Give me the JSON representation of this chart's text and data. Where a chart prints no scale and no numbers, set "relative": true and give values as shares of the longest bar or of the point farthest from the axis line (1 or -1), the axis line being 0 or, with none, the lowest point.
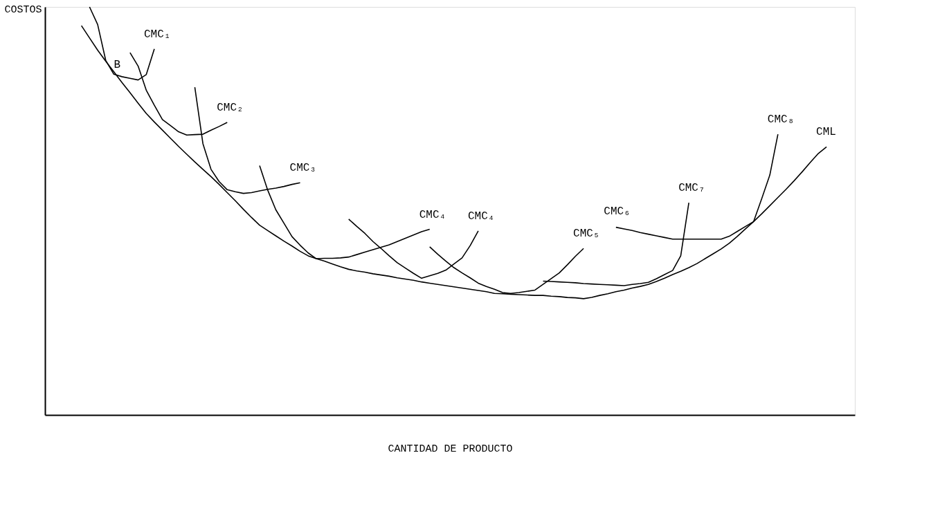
{
  "chart_data": {
    "type": "line",
    "relative": true,
    "xlabel": "CANTIDAD DE PRODUCTO",
    "ylabel": "COSTOS",
    "grid": false,
    "legend": false,
    "marker": "none",
    "line_style": "solid",
    "categories": [
      null,
      null,
      null,
      null,
      null,
      null,
      null,
      null,
      null,
      null,
      null,
      null,
      null,
      null,
      null,
      null,
      null,
      null,
      null,
      null,
      null,
      null,
      null,
      null,
      null,
      null,
      null,
      null,
      null,
      null,
      null,
      null,
      null,
      null,
      null,
      null,
      null,
      null,
      null,
      null,
      null,
      null,
      null,
      null,
      null,
      null,
      null,
      null,
      null,
      null,
      null,
      null,
      null,
      null,
      null,
      null,
      null,
      null,
      null,
      null,
      null,
      null,
      null,
      null,
      null,
      null,
      null,
      null,
      null,
      null,
      null,
      null,
      null,
      null,
      null,
      null,
      null,
      null,
      null,
      null,
      null,
      null,
      null,
      null,
      null,
      null,
      null,
      null,
      null,
      null,
      null,
      null,
      null,
      null,
      null,
      null,
      null,
      null,
      null,
      null
    ],
    "series": [
      {
        "name": "CMC₁",
        "color": "#000000",
        "values": [
          null,
          null,
          null,
          null,
          null,
          1.0,
          0.957,
          0.869,
          0.835,
          0.829,
          0.825,
          0.821,
          0.834,
          0.897,
          null,
          null,
          null,
          null,
          null,
          null,
          null,
          null,
          null,
          null,
          null,
          null,
          null,
          null,
          null,
          null,
          null,
          null,
          null,
          null,
          null,
          null,
          null,
          null,
          null,
          null,
          null,
          null,
          null,
          null,
          null,
          null,
          null,
          null,
          null,
          null,
          null,
          null,
          null,
          null,
          null,
          null,
          null,
          null,
          null,
          null,
          null,
          null,
          null,
          null,
          null,
          null,
          null,
          null,
          null,
          null,
          null,
          null,
          null,
          null,
          null,
          null,
          null,
          null,
          null,
          null,
          null,
          null,
          null,
          null,
          null,
          null,
          null,
          null,
          null,
          null,
          null,
          null,
          null,
          null,
          null,
          null,
          null,
          null,
          null,
          null
        ]
      },
      {
        "name": "CMC₂",
        "color": "#000000",
        "values": [
          null,
          null,
          null,
          null,
          null,
          null,
          null,
          null,
          null,
          null,
          0.888,
          0.855,
          0.796,
          0.759,
          0.724,
          0.709,
          0.694,
          0.686,
          0.687,
          0.688,
          0.698,
          0.707,
          0.717,
          null,
          null,
          null,
          null,
          null,
          null,
          null,
          null,
          null,
          null,
          null,
          null,
          null,
          null,
          null,
          null,
          null,
          null,
          null,
          null,
          null,
          null,
          null,
          null,
          null,
          null,
          null,
          null,
          null,
          null,
          null,
          null,
          null,
          null,
          null,
          null,
          null,
          null,
          null,
          null,
          null,
          null,
          null,
          null,
          null,
          null,
          null,
          null,
          null,
          null,
          null,
          null,
          null,
          null,
          null,
          null,
          null,
          null,
          null,
          null,
          null,
          null,
          null,
          null,
          null,
          null,
          null,
          null,
          null,
          null,
          null,
          null,
          null,
          null,
          null,
          null,
          null
        ]
      },
      {
        "name": "CMC₃",
        "color": "#000000",
        "values": [
          null,
          null,
          null,
          null,
          null,
          null,
          null,
          null,
          null,
          null,
          null,
          null,
          null,
          null,
          null,
          null,
          null,
          null,
          0.803,
          0.665,
          0.602,
          0.572,
          0.552,
          0.547,
          0.543,
          0.545,
          0.549,
          0.553,
          0.556,
          0.56,
          0.565,
          0.569,
          null,
          null,
          null,
          null,
          null,
          null,
          null,
          null,
          null,
          null,
          null,
          null,
          null,
          null,
          null,
          null,
          null,
          null,
          null,
          null,
          null,
          null,
          null,
          null,
          null,
          null,
          null,
          null,
          null,
          null,
          null,
          null,
          null,
          null,
          null,
          null,
          null,
          null,
          null,
          null,
          null,
          null,
          null,
          null,
          null,
          null,
          null,
          null,
          null,
          null,
          null,
          null,
          null,
          null,
          null,
          null,
          null,
          null,
          null,
          null,
          null,
          null,
          null,
          null,
          null,
          null,
          null,
          null
        ]
      },
      {
        "name": "CMC₄",
        "color": "#000000",
        "values": [
          null,
          null,
          null,
          null,
          null,
          null,
          null,
          null,
          null,
          null,
          null,
          null,
          null,
          null,
          null,
          null,
          null,
          null,
          null,
          null,
          null,
          null,
          null,
          null,
          null,
          null,
          0.611,
          0.551,
          0.503,
          0.47,
          0.437,
          0.416,
          0.397,
          0.383,
          0.384,
          0.384,
          0.385,
          0.387,
          0.393,
          0.399,
          0.405,
          0.411,
          0.417,
          0.425,
          0.433,
          0.441,
          0.449,
          0.455,
          null,
          null,
          null,
          null,
          null,
          null,
          null,
          null,
          null,
          null,
          null,
          null,
          null,
          null,
          null,
          null,
          null,
          null,
          null,
          null,
          null,
          null,
          null,
          null,
          null,
          null,
          null,
          null,
          null,
          null,
          null,
          null,
          null,
          null,
          null,
          null,
          null,
          null,
          null,
          null,
          null,
          null,
          null,
          null,
          null,
          null,
          null,
          null,
          null,
          null,
          null,
          null
        ]
      },
      {
        "name": "CMC₄",
        "color": "#000000",
        "values": [
          null,
          null,
          null,
          null,
          null,
          null,
          null,
          null,
          null,
          null,
          null,
          null,
          null,
          null,
          null,
          null,
          null,
          null,
          null,
          null,
          null,
          null,
          null,
          null,
          null,
          null,
          null,
          null,
          null,
          null,
          null,
          null,
          null,
          null,
          null,
          null,
          null,
          0.48,
          0.462,
          0.445,
          0.425,
          0.408,
          0.39,
          0.373,
          0.36,
          0.347,
          0.335,
          0.341,
          0.347,
          0.355,
          0.37,
          0.385,
          0.415,
          0.451,
          null,
          null,
          null,
          null,
          null,
          null,
          null,
          null,
          null,
          null,
          null,
          null,
          null,
          null,
          null,
          null,
          null,
          null,
          null,
          null,
          null,
          null,
          null,
          null,
          null,
          null,
          null,
          null,
          null,
          null,
          null,
          null,
          null,
          null,
          null,
          null,
          null,
          null,
          null,
          null,
          null,
          null,
          null,
          null,
          null,
          null
        ]
      },
      {
        "name": "CMC₅",
        "color": "#000000",
        "values": [
          null,
          null,
          null,
          null,
          null,
          null,
          null,
          null,
          null,
          null,
          null,
          null,
          null,
          null,
          null,
          null,
          null,
          null,
          null,
          null,
          null,
          null,
          null,
          null,
          null,
          null,
          null,
          null,
          null,
          null,
          null,
          null,
          null,
          null,
          null,
          null,
          null,
          null,
          null,
          null,
          null,
          null,
          null,
          null,
          null,
          null,
          null,
          0.412,
          0.394,
          0.377,
          0.361,
          0.348,
          0.336,
          0.323,
          0.315,
          0.308,
          0.3,
          0.298,
          0.3,
          0.303,
          0.306,
          0.32,
          0.334,
          0.348,
          0.368,
          0.389,
          0.408,
          null,
          null,
          null,
          null,
          null,
          null,
          null,
          null,
          null,
          null,
          null,
          null,
          null,
          null,
          null,
          null,
          null,
          null,
          null,
          null,
          null,
          null,
          null,
          null,
          null,
          null,
          null,
          null,
          null,
          null,
          null,
          null,
          null
        ]
      },
      {
        "name": "CMC₇",
        "color": "#000000",
        "values": [
          null,
          null,
          null,
          null,
          null,
          null,
          null,
          null,
          null,
          null,
          null,
          null,
          null,
          null,
          null,
          null,
          null,
          null,
          null,
          null,
          null,
          null,
          null,
          null,
          null,
          null,
          null,
          null,
          null,
          null,
          null,
          null,
          null,
          null,
          null,
          null,
          null,
          null,
          null,
          null,
          null,
          null,
          null,
          null,
          null,
          null,
          null,
          null,
          null,
          null,
          null,
          null,
          null,
          null,
          null,
          null,
          null,
          null,
          null,
          null,
          null,
          0.328,
          0.327,
          0.326,
          0.325,
          0.324,
          0.322,
          0.321,
          0.32,
          0.319,
          0.318,
          0.317,
          0.32,
          0.322,
          0.325,
          0.334,
          0.344,
          0.354,
          0.39,
          0.52,
          null,
          null,
          null,
          null,
          null,
          null,
          null,
          null,
          null,
          null,
          null,
          null,
          null,
          null,
          null,
          null,
          null,
          null,
          null,
          null
        ]
      },
      {
        "name": "CMC₈",
        "color": "#000000",
        "values": [
          null,
          null,
          null,
          null,
          null,
          null,
          null,
          null,
          null,
          null,
          null,
          null,
          null,
          null,
          null,
          null,
          null,
          null,
          null,
          null,
          null,
          null,
          null,
          null,
          null,
          null,
          null,
          null,
          null,
          null,
          null,
          null,
          null,
          null,
          null,
          null,
          null,
          null,
          null,
          null,
          null,
          null,
          null,
          null,
          null,
          null,
          null,
          null,
          null,
          null,
          null,
          null,
          null,
          null,
          null,
          null,
          null,
          null,
          null,
          null,
          null,
          null,
          null,
          null,
          null,
          null,
          null,
          null,
          null,
          null,
          0.46,
          0.456,
          0.452,
          0.447,
          0.443,
          0.439,
          0.435,
          0.431,
          0.431,
          0.431,
          0.431,
          0.431,
          0.431,
          0.431,
          0.438,
          0.45,
          0.462,
          0.474,
          0.53,
          0.588,
          0.688,
          null,
          null,
          null,
          null,
          null,
          null,
          null,
          null,
          null
        ]
      },
      {
        "name": "CML",
        "color": "#000000",
        "values": [
          null,
          null,
          null,
          null,
          0.954,
          0.924,
          0.894,
          0.867,
          0.841,
          0.815,
          0.79,
          0.764,
          0.739,
          0.718,
          0.698,
          0.678,
          0.658,
          0.639,
          0.62,
          0.602,
          0.584,
          0.565,
          0.545,
          0.525,
          0.504,
          0.484,
          0.465,
          0.452,
          0.439,
          0.426,
          0.414,
          0.401,
          0.39,
          0.383,
          0.377,
          0.37,
          0.363,
          0.357,
          0.353,
          0.35,
          0.346,
          0.343,
          0.34,
          0.336,
          0.333,
          0.33,
          0.326,
          0.323,
          0.32,
          0.317,
          0.314,
          0.311,
          0.308,
          0.305,
          0.302,
          0.298,
          0.297,
          0.296,
          0.295,
          0.294,
          0.293,
          0.293,
          0.291,
          0.29,
          0.288,
          0.287,
          0.285,
          0.288,
          0.293,
          0.297,
          0.302,
          0.306,
          0.311,
          0.315,
          0.32,
          0.327,
          0.335,
          0.344,
          0.352,
          0.361,
          0.371,
          0.383,
          0.395,
          0.407,
          0.421,
          0.438,
          0.456,
          0.474,
          0.493,
          0.513,
          0.533,
          0.553,
          0.574,
          0.596,
          0.619,
          0.641,
          0.657,
          null,
          null,
          null
        ]
      }
    ],
    "annotations": [
      "B",
      "CMC₆"
    ]
  }
}
